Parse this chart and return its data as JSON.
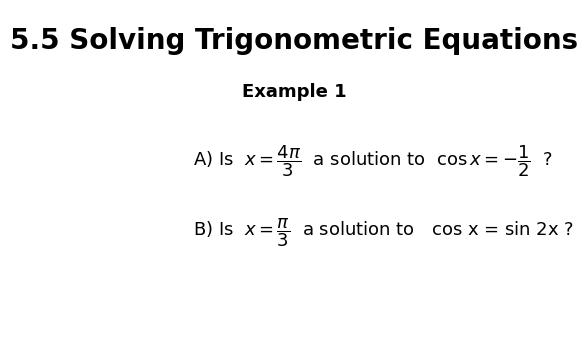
{
  "title": "5.5 Solving Trigonometric Equations",
  "subtitle": "Example 1",
  "bg_color": "#ffffff",
  "title_fontsize": 20,
  "subtitle_fontsize": 13,
  "body_fontsize": 13,
  "math_fontsize": 11
}
